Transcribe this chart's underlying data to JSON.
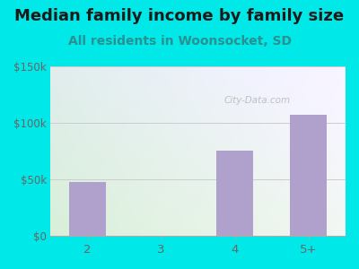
{
  "title": "Median family income by family size",
  "subtitle": "All residents in Woonsocket, SD",
  "categories": [
    "2",
    "3",
    "4",
    "5+"
  ],
  "values": [
    48000,
    0,
    75000,
    107000
  ],
  "bar_color": "#b0a0cc",
  "ylim": [
    0,
    150000
  ],
  "yticks": [
    0,
    50000,
    100000,
    150000
  ],
  "ytick_labels": [
    "$0",
    "$50k",
    "$100k",
    "$150k"
  ],
  "title_fontsize": 13,
  "subtitle_fontsize": 10,
  "subtitle_color": "#2a9090",
  "title_color": "#1a1a1a",
  "outer_bg": "#00e8e8",
  "watermark": "City-Data.com",
  "tick_color": "#666666",
  "grid_color": "#cccccc"
}
